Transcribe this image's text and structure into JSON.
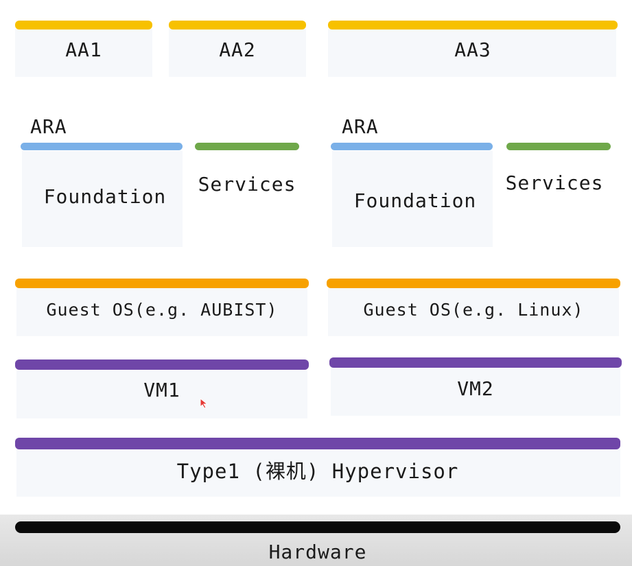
{
  "colors": {
    "app_bar": "#f7c100",
    "foundation_bar": "#7ab0e8",
    "services_bar": "#6fa84a",
    "guest_os_bar": "#f7a100",
    "vm_bar": "#6f46a8",
    "hypervisor_bar": "#6f46a8",
    "hardware_bar": "#0a0a0a"
  },
  "applications": {
    "aa1": "AA1",
    "aa2": "AA2",
    "aa3": "AA3"
  },
  "left_stack": {
    "ara_label": "ARA",
    "foundation": "Foundation",
    "services": "Services",
    "guest_os": "Guest OS(e.g. AUBIST)",
    "vm": "VM1"
  },
  "right_stack": {
    "ara_label": "ARA",
    "foundation": "Foundation",
    "services": "Services",
    "guest_os": "Guest OS(e.g. Linux)",
    "vm": "VM2"
  },
  "hypervisor": "Type1 (裸机) Hypervisor",
  "hardware": "Hardware",
  "icons": {
    "cursor": "mouse-cursor-icon"
  }
}
